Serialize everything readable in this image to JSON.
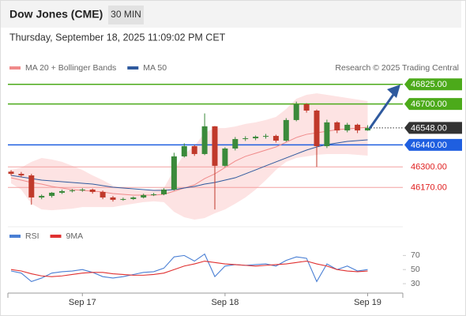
{
  "header": {
    "title": "Dow Jones (CME)",
    "interval": "30 MIN",
    "timestamp": "Thursday, September 18, 2025 11:09:02 PM CET"
  },
  "chart_data": [
    {
      "type": "candlestick",
      "source": "Research © 2025 Trading Central",
      "ylim": [
        45930,
        47180
      ],
      "up_color": "#3b8a3b",
      "down_color": "#c0392b",
      "open": [
        46270,
        46256,
        46246,
        46106,
        46116,
        46136,
        46146,
        46151,
        46156,
        46141,
        46106,
        46091,
        46096,
        46106,
        46121,
        46126,
        46156,
        46367,
        46432,
        46382,
        46558,
        46307,
        46417,
        46477,
        46482,
        46492,
        46497,
        46467,
        46598,
        46698,
        46658,
        46432,
        46583,
        46532,
        46568,
        46532
      ],
      "high": [
        46280,
        46268,
        46256,
        46125,
        46140,
        46155,
        46160,
        46165,
        46162,
        46150,
        46115,
        46105,
        46112,
        46130,
        46135,
        46165,
        46390,
        46450,
        46440,
        46640,
        46560,
        46425,
        46490,
        46495,
        46500,
        46510,
        46505,
        46610,
        46715,
        46705,
        46665,
        46600,
        46590,
        46580,
        46575,
        46565
      ],
      "low": [
        46245,
        46235,
        46060,
        46095,
        46105,
        46128,
        46138,
        46142,
        46130,
        46095,
        46080,
        46085,
        46090,
        46100,
        46115,
        46120,
        46150,
        46360,
        46370,
        46375,
        46030,
        46300,
        46405,
        46465,
        46470,
        46480,
        46455,
        46460,
        46590,
        46645,
        46300,
        46420,
        46515,
        46520,
        46515,
        46530
      ],
      "close": [
        46256,
        46246,
        46106,
        46116,
        46136,
        46146,
        46151,
        46156,
        46141,
        46106,
        46091,
        46096,
        46106,
        46121,
        46126,
        46156,
        46367,
        46432,
        46382,
        46558,
        46307,
        46417,
        46477,
        46482,
        46492,
        46497,
        46467,
        46598,
        46698,
        46658,
        46432,
        46583,
        46532,
        46568,
        46532,
        46548
      ],
      "series": [
        {
          "name": "MA 20 + Bollinger Bands",
          "color": "#f08a8a",
          "band_color": "#fde3e3",
          "values": [
            46231,
            46216,
            46201,
            46191,
            46176,
            46166,
            46156,
            46151,
            46146,
            46141,
            46131,
            46126,
            46121,
            46121,
            46121,
            46126,
            46146,
            46166,
            46186,
            46226,
            46256,
            46296,
            46337,
            46367,
            46387,
            46407,
            46427,
            46457,
            46487,
            46507,
            46517,
            46527,
            46537,
            46542,
            46547,
            46552
          ],
          "upper": [
            46281,
            46296,
            46332,
            46357,
            46347,
            46332,
            46307,
            46281,
            46246,
            46216,
            46181,
            46166,
            46156,
            46151,
            46156,
            46166,
            46281,
            46382,
            46432,
            46517,
            46547,
            46547,
            46557,
            46573,
            46583,
            46598,
            46618,
            46668,
            46733,
            46758,
            46768,
            46758,
            46748,
            46738,
            46728,
            46718
          ],
          "lower": [
            46196,
            46156,
            46066,
            46030,
            46025,
            46030,
            46035,
            46045,
            46045,
            46045,
            46045,
            46056,
            46066,
            46076,
            46081,
            46076,
            46015,
            45980,
            45965,
            45975,
            46005,
            46030,
            46066,
            46106,
            46156,
            46216,
            46281,
            46332,
            46357,
            46367,
            46377,
            46382,
            46382,
            46382,
            46377,
            46372
          ]
        },
        {
          "name": "MA 50",
          "color": "#2f5a9e",
          "values": [
            46246,
            46236,
            46226,
            46216,
            46211,
            46206,
            46201,
            46196,
            46191,
            46181,
            46171,
            46166,
            46161,
            46156,
            46151,
            46151,
            46156,
            46166,
            46176,
            46191,
            46201,
            46216,
            46231,
            46256,
            46281,
            46307,
            46332,
            46357,
            46382,
            46407,
            46427,
            46442,
            46452,
            46462,
            46467,
            46472
          ]
        }
      ],
      "levels": [
        {
          "value": 46825,
          "label": "46825.00",
          "color": "#4caa1a",
          "style": "box",
          "line": "solid"
        },
        {
          "value": 46700,
          "label": "46700.00",
          "color": "#4caa1a",
          "style": "box",
          "line": "solid"
        },
        {
          "value": 46548,
          "label": "46548.00",
          "color": "#333333",
          "style": "box",
          "line": "dotted"
        },
        {
          "value": 46440,
          "label": "46440.00",
          "color": "#1f5fe0",
          "style": "box",
          "line": "solid"
        },
        {
          "value": 46300,
          "label": "46300.00",
          "color": "#e02020",
          "style": "text",
          "line": "solid"
        },
        {
          "value": 46170,
          "label": "46170.00",
          "color": "#e02020",
          "style": "text",
          "line": "solid"
        }
      ]
    },
    {
      "type": "line",
      "categories": [
        null,
        null,
        null,
        null,
        null,
        null,
        null,
        "Sep 17",
        null,
        null,
        null,
        null,
        null,
        null,
        null,
        null,
        null,
        null,
        null,
        null,
        null,
        "Sep 18",
        null,
        null,
        null,
        null,
        null,
        null,
        null,
        null,
        null,
        null,
        null,
        null,
        null,
        "Sep 19"
      ],
      "ylim": [
        20,
        85
      ],
      "yticks": [
        30,
        50,
        70
      ],
      "series": [
        {
          "name": "RSI",
          "color": "#4a7fd4",
          "values": [
            48,
            45,
            33,
            38,
            45,
            47,
            48,
            50,
            46,
            40,
            38,
            40,
            43,
            46,
            47,
            52,
            68,
            70,
            62,
            72,
            40,
            55,
            57,
            56,
            57,
            58,
            55,
            63,
            68,
            66,
            33,
            58,
            50,
            55,
            48,
            50
          ]
        },
        {
          "name": "9MA",
          "color": "#e03030",
          "values": [
            50,
            48,
            44,
            41,
            40,
            41,
            43,
            45,
            46,
            46,
            44,
            43,
            42,
            42,
            43,
            45,
            50,
            55,
            58,
            62,
            60,
            58,
            57,
            56,
            55,
            56,
            57,
            58,
            60,
            62,
            58,
            55,
            50,
            48,
            47,
            48
          ]
        }
      ]
    }
  ]
}
